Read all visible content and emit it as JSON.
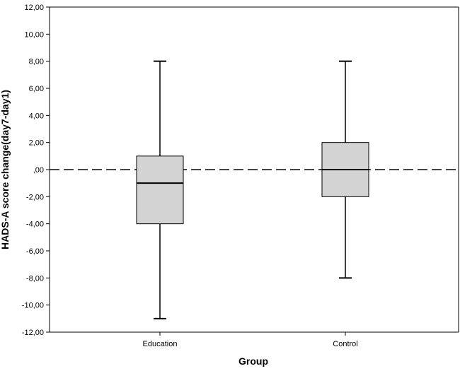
{
  "chart_data": {
    "type": "box",
    "xlabel": "Group",
    "ylabel": "HADS-A score change(day7-day1)",
    "ylim": [
      -12,
      12
    ],
    "yticks": [
      12,
      10,
      8,
      6,
      4,
      2,
      0,
      -2,
      -4,
      -6,
      -8,
      -10,
      -12
    ],
    "ytick_labels": [
      "12,00",
      "10,00",
      "8,00",
      "6,00",
      "4,00",
      "2,00",
      ",00",
      "-2,00",
      "-4,00",
      "-6,00",
      "-8,00",
      "-10,00",
      "-12,00"
    ],
    "categories": [
      "Education",
      "Control"
    ],
    "boxes": [
      {
        "category": "Education",
        "min": -11,
        "q1": -4,
        "median": -1,
        "q3": 1,
        "max": 8
      },
      {
        "category": "Control",
        "min": -8,
        "q1": -2,
        "median": 0,
        "q3": 2,
        "max": 8
      }
    ],
    "reference_line": {
      "y": 0,
      "style": "dashed"
    },
    "colors": {
      "box_fill": "#d3d3d3",
      "stroke": "#000000",
      "reference": "#444444"
    },
    "grid": false
  }
}
